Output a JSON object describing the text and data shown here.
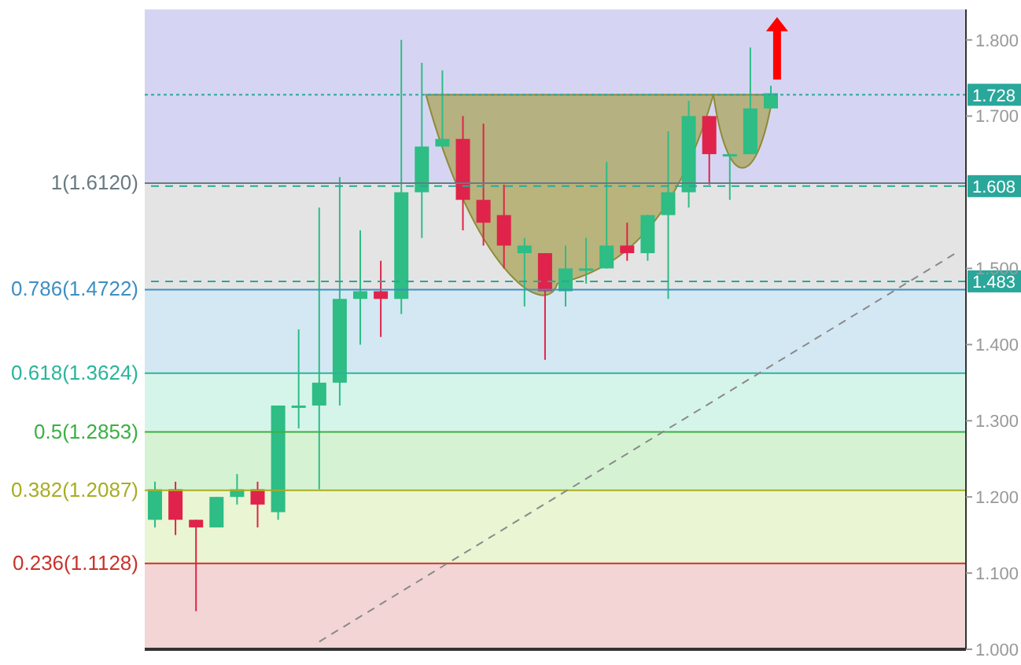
{
  "chart_data": {
    "type": "candlestick",
    "categories": [
      null,
      null,
      null,
      null,
      null,
      null,
      null,
      null,
      null,
      null,
      null,
      null,
      null,
      null,
      null,
      null,
      null,
      null,
      null,
      null,
      null,
      null,
      null,
      null,
      null,
      null,
      null,
      null,
      null,
      null,
      null,
      null,
      null,
      null,
      null,
      null,
      null,
      null,
      null,
      null
    ],
    "ohlc": [
      [
        1.17,
        1.22,
        1.16,
        1.21
      ],
      [
        1.21,
        1.22,
        1.15,
        1.17
      ],
      [
        1.17,
        1.17,
        1.05,
        1.16
      ],
      [
        1.16,
        1.2,
        1.16,
        1.2
      ],
      [
        1.2,
        1.23,
        1.19,
        1.21
      ],
      [
        1.21,
        1.22,
        1.16,
        1.19
      ],
      [
        1.18,
        1.32,
        1.17,
        1.32
      ],
      [
        1.32,
        1.42,
        1.29,
        1.32
      ],
      [
        1.32,
        1.58,
        1.21,
        1.35
      ],
      [
        1.35,
        1.62,
        1.32,
        1.46
      ],
      [
        1.46,
        1.55,
        1.4,
        1.47
      ],
      [
        1.47,
        1.51,
        1.41,
        1.46
      ],
      [
        1.46,
        1.8,
        1.44,
        1.6
      ],
      [
        1.6,
        1.77,
        1.54,
        1.66
      ],
      [
        1.66,
        1.76,
        1.66,
        1.67
      ],
      [
        1.67,
        1.7,
        1.55,
        1.59
      ],
      [
        1.59,
        1.69,
        1.53,
        1.56
      ],
      [
        1.57,
        1.61,
        1.5,
        1.53
      ],
      [
        1.52,
        1.54,
        1.45,
        1.53
      ],
      [
        1.52,
        1.52,
        1.38,
        1.47
      ],
      [
        1.47,
        1.53,
        1.45,
        1.5
      ],
      [
        1.5,
        1.54,
        1.48,
        1.5
      ],
      [
        1.5,
        1.64,
        1.5,
        1.53
      ],
      [
        1.53,
        1.56,
        1.51,
        1.52
      ],
      [
        1.52,
        1.57,
        1.51,
        1.57
      ],
      [
        1.57,
        1.68,
        1.46,
        1.6
      ],
      [
        1.6,
        1.72,
        1.58,
        1.7
      ],
      [
        1.7,
        1.7,
        1.61,
        1.65
      ],
      [
        1.65,
        1.65,
        1.59,
        1.65
      ],
      [
        1.65,
        1.79,
        1.65,
        1.71
      ],
      [
        1.71,
        1.74,
        1.71,
        1.73
      ],
      null,
      null,
      null,
      null,
      null,
      null,
      null,
      null,
      null
    ],
    "colors": [
      "#2dbd85",
      "#e0234a",
      "#e0234a",
      "#2dbd85",
      "#2dbd85",
      "#e0234a",
      "#2dbd85",
      "#2dbd85",
      "#2dbd85",
      "#2dbd85",
      "#2dbd85",
      "#e0234a",
      "#2dbd85",
      "#2dbd85",
      "#2dbd85",
      "#e0234a",
      "#e0234a",
      "#e0234a",
      "#2dbd85",
      "#e0234a",
      "#2dbd85",
      "#2dbd85",
      "#2dbd85",
      "#e0234a",
      "#2dbd85",
      "#2dbd85",
      "#2dbd85",
      "#e0234a",
      "#2dbd85",
      "#2dbd85",
      "#2dbd85",
      null,
      null,
      null,
      null,
      null,
      null,
      null,
      null,
      null
    ],
    "series": [
      {
        "type": "line",
        "values": [
          null,
          null,
          null,
          null,
          null,
          null,
          null,
          null,
          1.01,
          null,
          null,
          null,
          null,
          null,
          null,
          null,
          null,
          null,
          null,
          null,
          null,
          null,
          null,
          null,
          null,
          null,
          null,
          null,
          null,
          null,
          null,
          null,
          null,
          null,
          null,
          null,
          null,
          null,
          null,
          1.52
        ],
        "color": "#8a8a8a",
        "line_style": "dashed"
      }
    ],
    "ylim": [
      1.0,
      1.84
    ],
    "yticks": [
      {
        "value": 1.0,
        "label": "1.000"
      },
      {
        "value": 1.1,
        "label": "1.100"
      },
      {
        "value": 1.2,
        "label": "1.200"
      },
      {
        "value": 1.3,
        "label": "1.300"
      },
      {
        "value": 1.4,
        "label": "1.400"
      },
      {
        "value": 1.5,
        "label": "1.500"
      },
      {
        "value": 1.7,
        "label": "1.700"
      },
      {
        "value": 1.8,
        "label": "1.800"
      }
    ],
    "tick_labels": "y",
    "bands": [
      {
        "axis": "y",
        "from": 1.612,
        "to": 1.84,
        "color": "#d5d5f3"
      },
      {
        "axis": "y",
        "from": 1.4722,
        "to": 1.612,
        "color": "#e4e4e4"
      },
      {
        "axis": "y",
        "from": 1.3624,
        "to": 1.4722,
        "color": "#d3e8f3"
      },
      {
        "axis": "y",
        "from": 1.2853,
        "to": 1.3624,
        "color": "#d6f5ea"
      },
      {
        "axis": "y",
        "from": 1.2087,
        "to": 1.2853,
        "color": "#d5f3d3"
      },
      {
        "axis": "y",
        "from": 1.1128,
        "to": 1.2087,
        "color": "#e9f5d3"
      },
      {
        "axis": "y",
        "from": 1.0,
        "to": 1.1128,
        "color": "#f3d5d5"
      }
    ],
    "ref_lines": [
      {
        "axis": "y",
        "value": 1.612,
        "label": "1(1.6120)",
        "color": "#6a7a80",
        "line_style": "solid"
      },
      {
        "axis": "y",
        "value": 1.4722,
        "label": "0.786(1.4722)",
        "color": "#3d8fc4",
        "line_style": "solid"
      },
      {
        "axis": "y",
        "value": 1.3624,
        "label": "0.618(1.3624)",
        "color": "#2bb59a",
        "line_style": "solid"
      },
      {
        "axis": "y",
        "value": 1.2853,
        "label": "0.5(1.2853)",
        "color": "#3cb043",
        "line_style": "solid"
      },
      {
        "axis": "y",
        "value": 1.2087,
        "label": "0.382(1.2087)",
        "color": "#a8ad22",
        "line_style": "solid"
      },
      {
        "axis": "y",
        "value": 1.1128,
        "label": "0.236(1.1128)",
        "color": "#c8342b",
        "line_style": "solid"
      },
      {
        "axis": "y",
        "value": 1.728,
        "label": "1.728",
        "color": "#2aa79b",
        "line_style": "dotted"
      },
      {
        "axis": "y",
        "value": 1.608,
        "label": "1.608",
        "color": "#2aa79b",
        "line_style": "dashed"
      },
      {
        "axis": "y",
        "value": 1.483,
        "label": "1.483",
        "color": "#2aa79b",
        "line_style": "dashed"
      }
    ]
  }
}
